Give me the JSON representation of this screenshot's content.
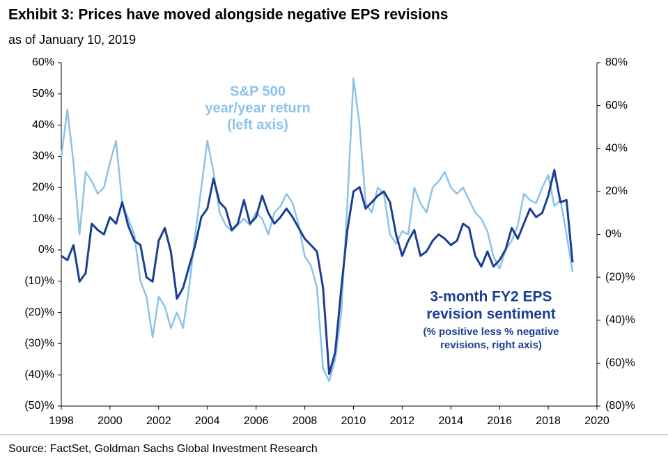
{
  "chart_data": {
    "type": "line",
    "title": "Exhibit 3: Prices have moved alongside negative EPS revisions",
    "subtitle": "as of January 10, 2019",
    "source": "Source: FactSet, Goldman Sachs Global Investment Research",
    "annotations": [
      {
        "lines": [
          "S&P 500",
          "year/year return",
          "(left axis)"
        ],
        "color": "#8cc3ea"
      },
      {
        "lines": [
          "3-month FY2 EPS",
          "revision sentiment",
          "(% positive less % negative",
          "revisions, right axis)"
        ],
        "color": "#1a3f91"
      }
    ],
    "xlim": [
      1998,
      2020
    ],
    "xticks": [
      1998,
      2000,
      2002,
      2004,
      2006,
      2008,
      2010,
      2012,
      2014,
      2016,
      2018,
      2020
    ],
    "ylim": [
      -50,
      60
    ],
    "yticks": [
      {
        "value": -50,
        "label": "(50)%"
      },
      {
        "value": -40,
        "label": "(40)%"
      },
      {
        "value": -30,
        "label": "(30)%"
      },
      {
        "value": -20,
        "label": "(20)%"
      },
      {
        "value": -10,
        "label": "(10)%"
      },
      {
        "value": 0,
        "label": "0%"
      },
      {
        "value": 10,
        "label": "10%"
      },
      {
        "value": 20,
        "label": "20%"
      },
      {
        "value": 30,
        "label": "30%"
      },
      {
        "value": 40,
        "label": "40%"
      },
      {
        "value": 50,
        "label": "50%"
      },
      {
        "value": 60,
        "label": "60%"
      }
    ],
    "y2lim": [
      -80,
      80
    ],
    "y2ticks": [
      {
        "value": -80,
        "label": "(80)%"
      },
      {
        "value": -60,
        "label": "(60)%"
      },
      {
        "value": -40,
        "label": "(40)%"
      },
      {
        "value": -20,
        "label": "(20)%"
      },
      {
        "value": 0,
        "label": "0%"
      },
      {
        "value": 20,
        "label": "20%"
      },
      {
        "value": 40,
        "label": "40%"
      },
      {
        "value": 60,
        "label": "60%"
      },
      {
        "value": 80,
        "label": "80%"
      }
    ],
    "x": [
      1998.0,
      1998.25,
      1998.5,
      1998.75,
      1999.0,
      1999.25,
      1999.5,
      1999.75,
      2000.0,
      2000.25,
      2000.5,
      2000.75,
      2001.0,
      2001.25,
      2001.5,
      2001.75,
      2002.0,
      2002.25,
      2002.5,
      2002.75,
      2003.0,
      2003.25,
      2003.5,
      2003.75,
      2004.0,
      2004.25,
      2004.5,
      2004.75,
      2005.0,
      2005.25,
      2005.5,
      2005.75,
      2006.0,
      2006.25,
      2006.5,
      2006.75,
      2007.0,
      2007.25,
      2007.5,
      2007.75,
      2008.0,
      2008.25,
      2008.5,
      2008.75,
      2009.0,
      2009.25,
      2009.5,
      2009.75,
      2010.0,
      2010.25,
      2010.5,
      2010.75,
      2011.0,
      2011.25,
      2011.5,
      2011.75,
      2012.0,
      2012.25,
      2012.5,
      2012.75,
      2013.0,
      2013.25,
      2013.5,
      2013.75,
      2014.0,
      2014.25,
      2014.5,
      2014.75,
      2015.0,
      2015.25,
      2015.5,
      2015.75,
      2016.0,
      2016.25,
      2016.5,
      2016.75,
      2017.0,
      2017.25,
      2017.5,
      2017.75,
      2018.0,
      2018.25,
      2018.5,
      2018.75,
      2019.0
    ],
    "series": [
      {
        "color": "#8cc3ea",
        "axis": "y",
        "values": [
          30,
          45,
          28,
          5,
          25,
          22,
          18,
          20,
          28,
          35,
          15,
          10,
          5,
          -10,
          -15,
          -28,
          -15,
          -18,
          -25,
          -20,
          -25,
          -12,
          5,
          20,
          35,
          25,
          12,
          8,
          6,
          8,
          10,
          8,
          12,
          10,
          5,
          12,
          14,
          18,
          15,
          8,
          -2,
          -5,
          -12,
          -38,
          -42,
          -35,
          -20,
          15,
          55,
          40,
          15,
          12,
          20,
          18,
          5,
          2,
          6,
          5,
          20,
          15,
          12,
          20,
          22,
          25,
          20,
          18,
          20,
          16,
          12,
          10,
          6,
          -2,
          -6,
          0,
          3,
          8,
          18,
          16,
          15,
          20,
          24,
          14,
          16,
          5,
          -7
        ]
      },
      {
        "color": "#1a3f91",
        "axis": "y2",
        "values": [
          -10,
          -12,
          -5,
          -22,
          -18,
          5,
          2,
          0,
          8,
          5,
          15,
          4,
          -3,
          -5,
          -20,
          -22,
          -3,
          3,
          -8,
          -30,
          -25,
          -15,
          -5,
          8,
          12,
          26,
          15,
          12,
          2,
          5,
          16,
          5,
          8,
          18,
          10,
          5,
          8,
          12,
          8,
          3,
          -2,
          -5,
          -8,
          -25,
          -65,
          -55,
          -25,
          2,
          20,
          22,
          12,
          15,
          18,
          20,
          15,
          0,
          -10,
          -3,
          2,
          -10,
          -8,
          -3,
          0,
          -2,
          -5,
          -3,
          5,
          3,
          -10,
          -15,
          -8,
          -15,
          -12,
          -7,
          3,
          -2,
          5,
          12,
          8,
          10,
          18,
          30,
          15,
          16,
          -13
        ]
      }
    ]
  }
}
